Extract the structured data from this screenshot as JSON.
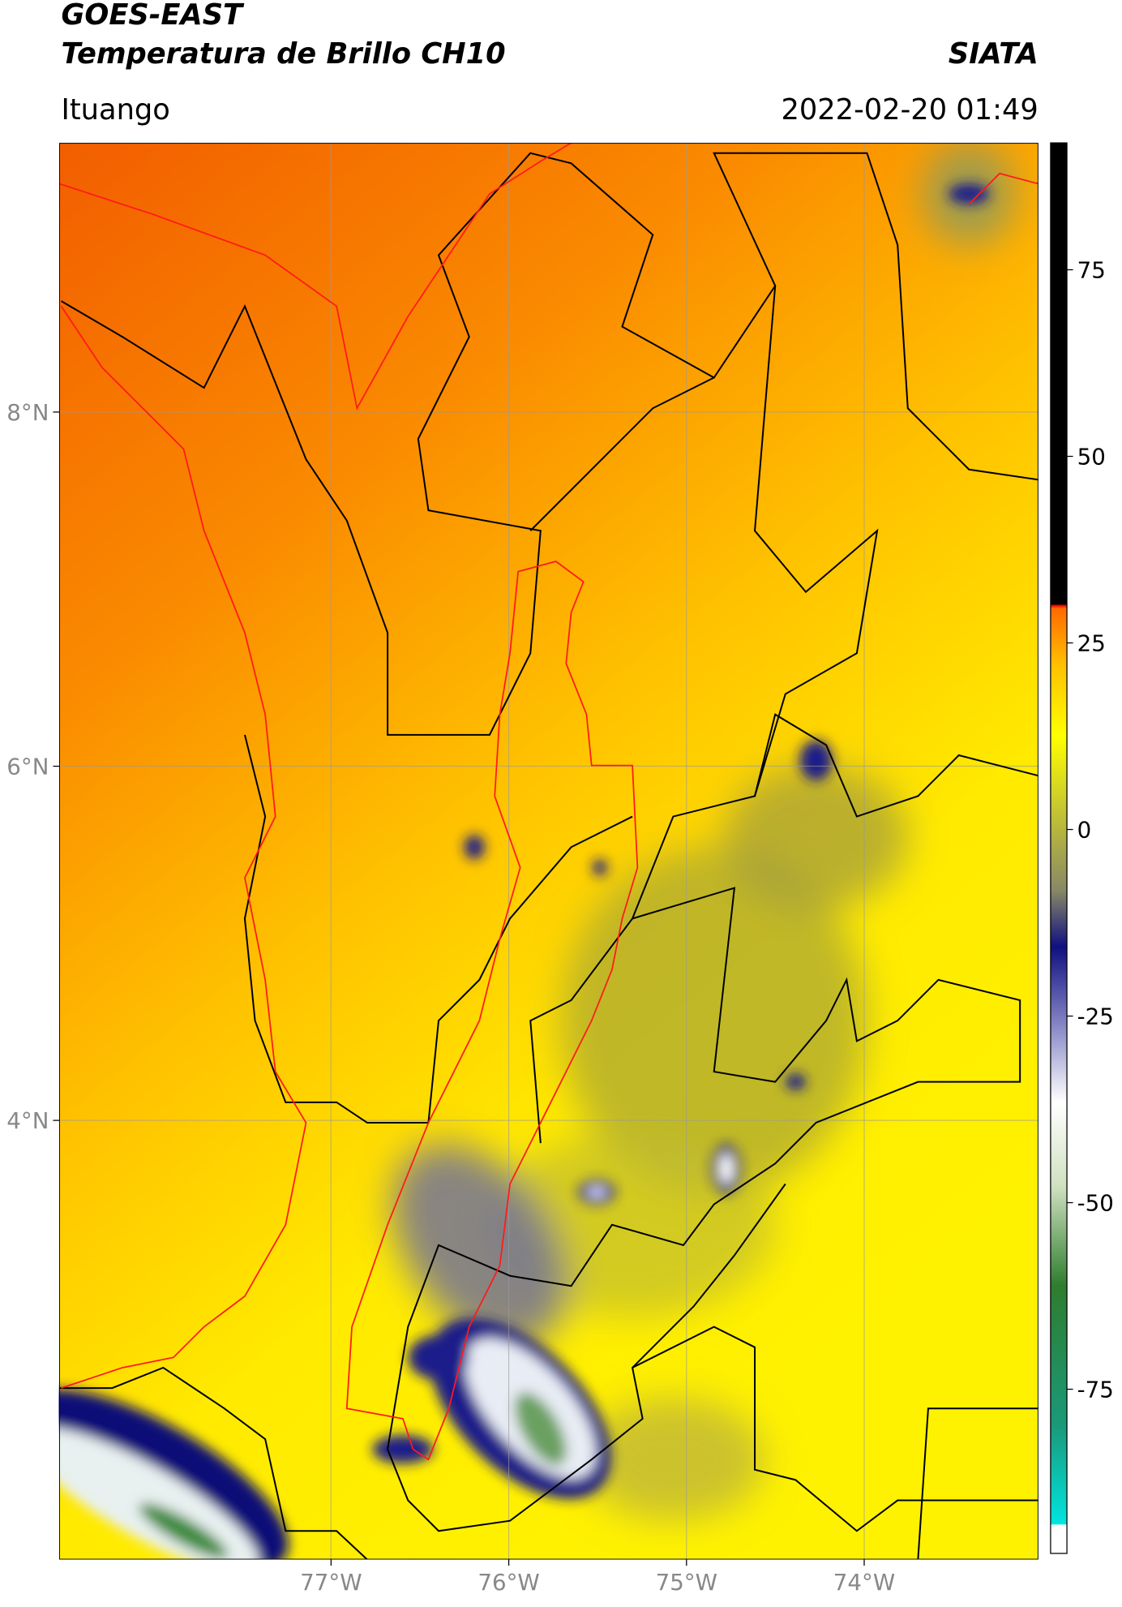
{
  "header": {
    "title_line1": "GOES-EAST",
    "title_line2": "Temperatura de Brillo CH10",
    "source": "SIATA",
    "region": "Ituango",
    "timestamp": "2022-02-20 01:49"
  },
  "map": {
    "lon_lim": [
      -78.53,
      -73.02
    ],
    "lat_lim": [
      1.52,
      9.52
    ],
    "lon_ticks": [
      {
        "value": -77,
        "label": "77°W"
      },
      {
        "value": -76,
        "label": "76°W"
      },
      {
        "value": -75,
        "label": "75°W"
      },
      {
        "value": -74,
        "label": "74°W"
      }
    ],
    "lat_ticks": [
      {
        "value": 8,
        "label": "8°N"
      },
      {
        "value": 6,
        "label": "6°N"
      },
      {
        "value": 4,
        "label": "4°N"
      }
    ]
  },
  "colorbar": {
    "lim": [
      -97,
      92
    ],
    "ticks": [
      75,
      50,
      25,
      0,
      -25,
      -50,
      -75
    ]
  }
}
